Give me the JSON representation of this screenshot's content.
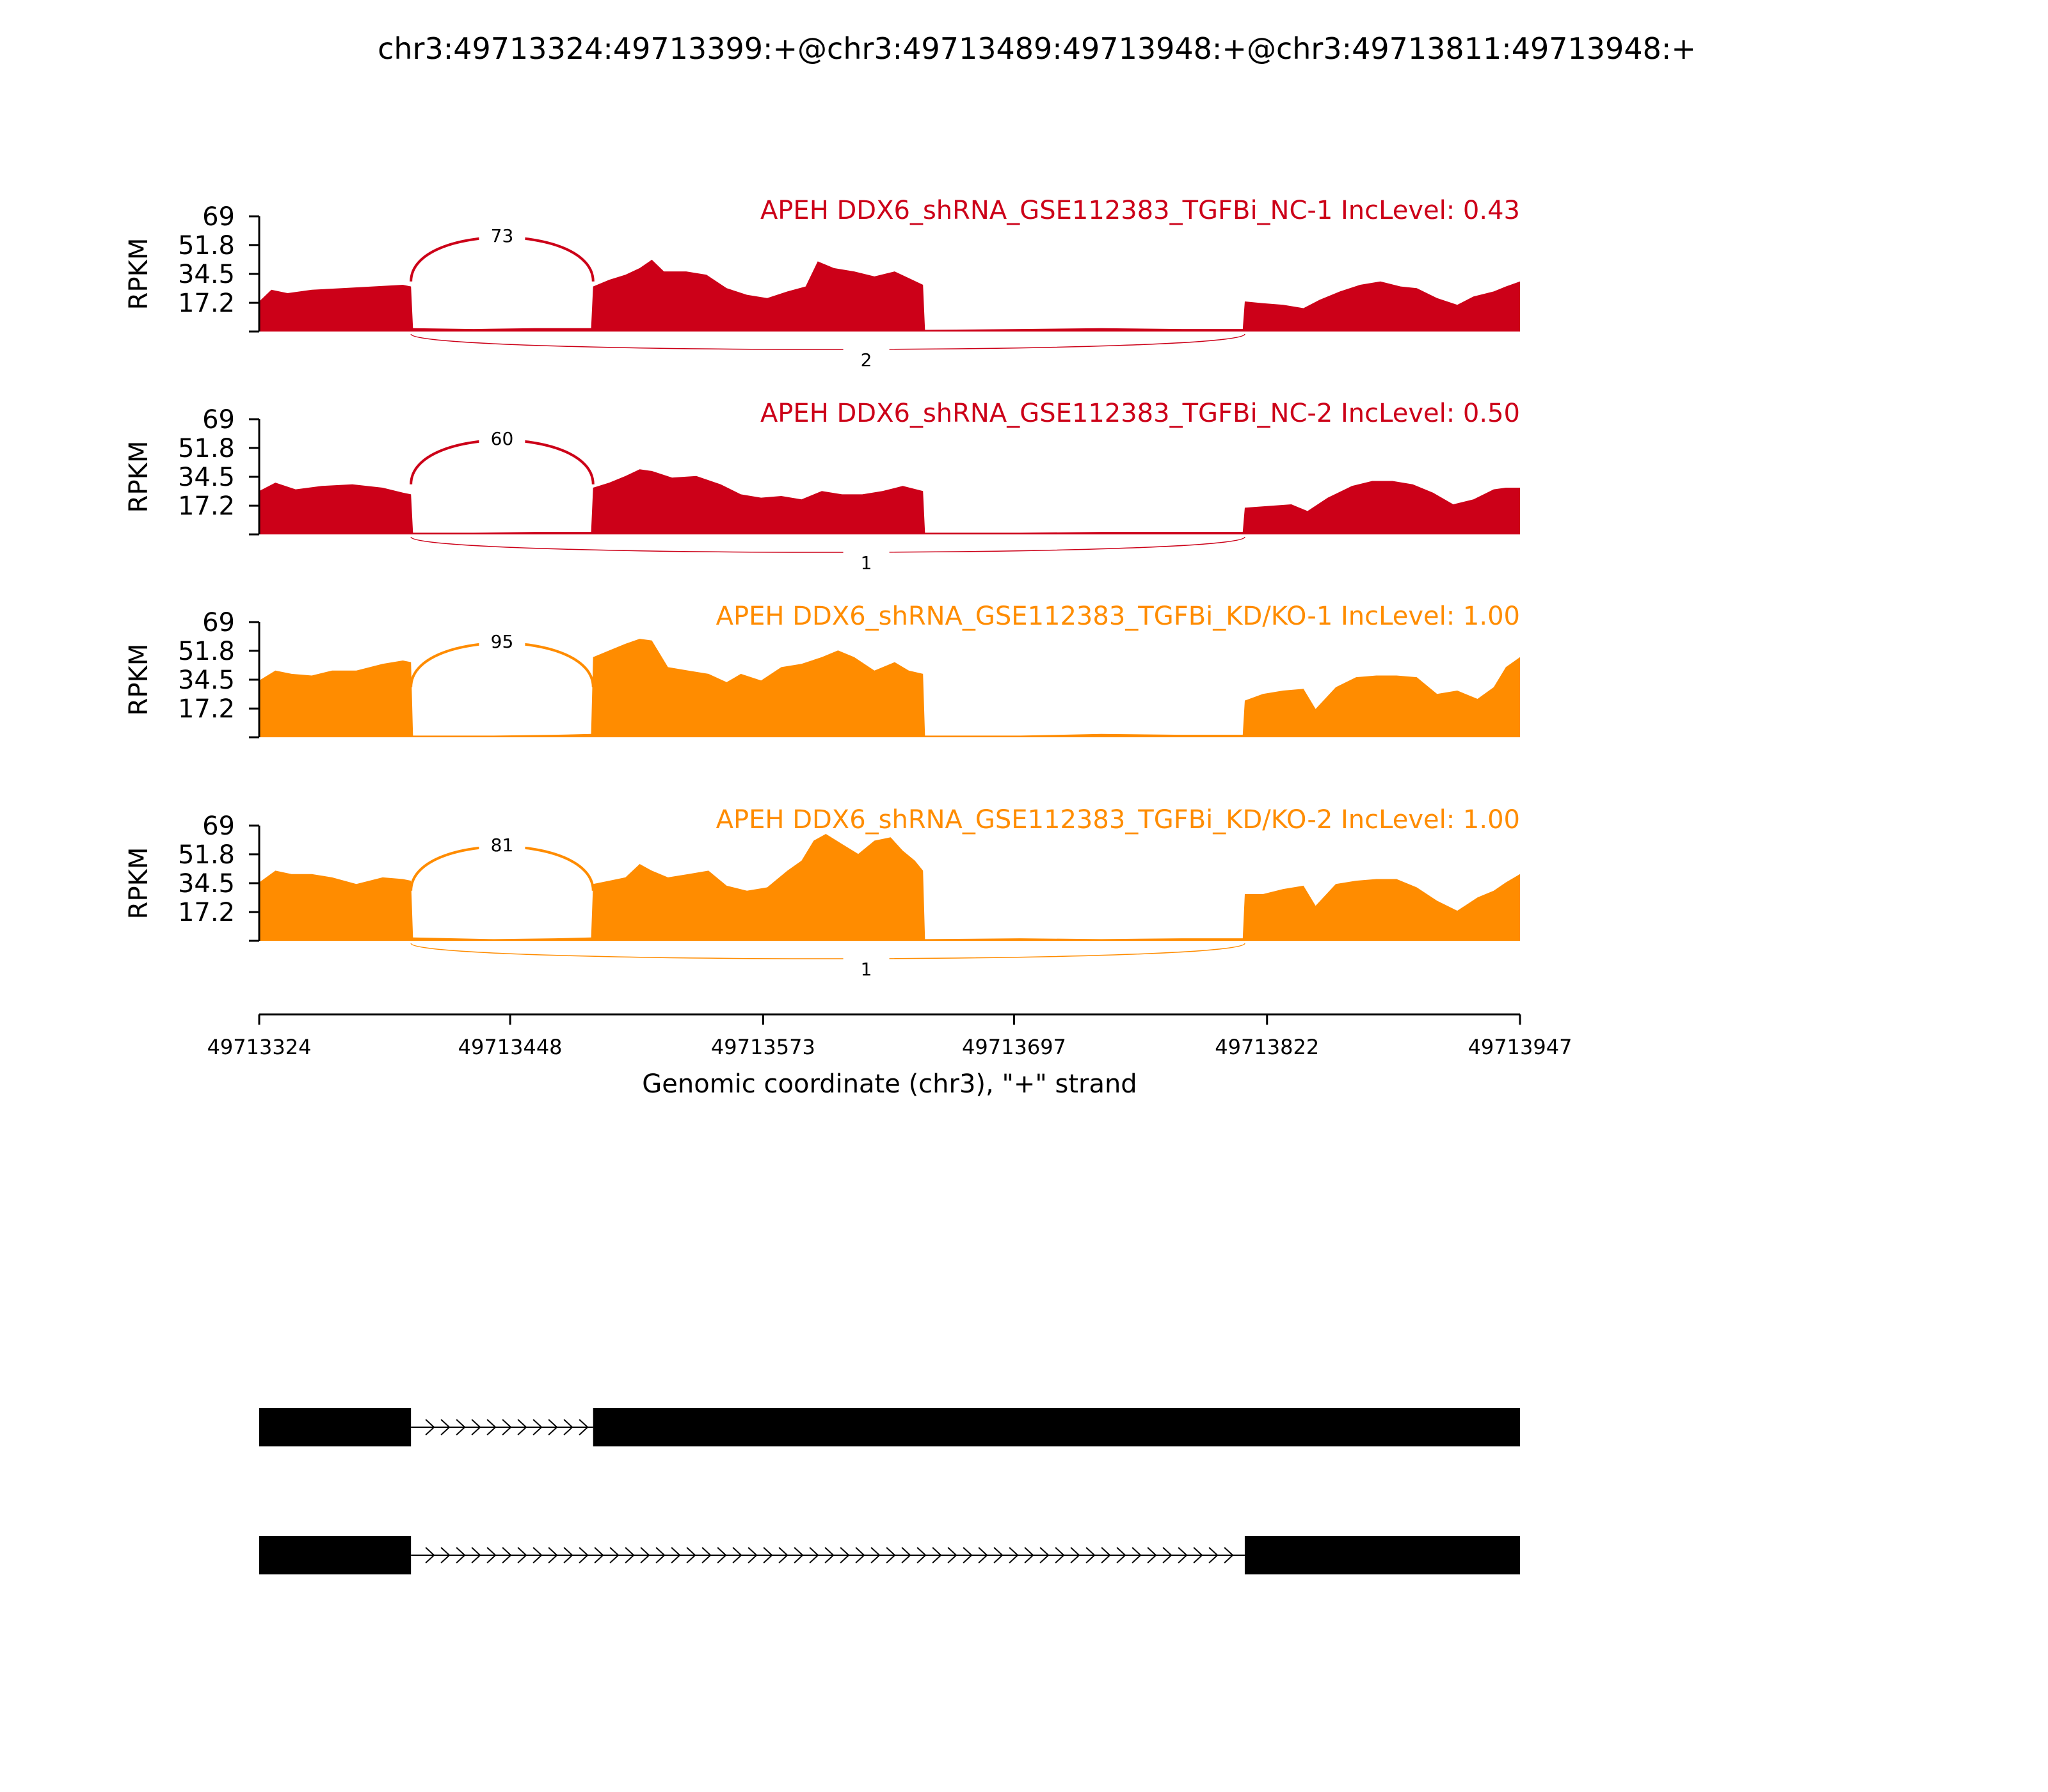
{
  "title": "chr3:49713324:49713399:+@chr3:49713489:49713948:+@chr3:49713811:49713948:+",
  "chart_data": {
    "type": "area",
    "title": "chr3:49713324:49713399:+@chr3:49713489:49713948:+@chr3:49713811:49713948:+",
    "xlabel": "Genomic coordinate (chr3), \"+\" strand",
    "ylabel": "RPKM",
    "xlim": [
      49713324,
      49713947
    ],
    "ylim": [
      0,
      69
    ],
    "x_ticks": [
      "49713324",
      "49713448",
      "49713573",
      "49713697",
      "49713822",
      "49713947"
    ],
    "y_ticks": [
      "17.2",
      "34.5",
      "51.8",
      "69"
    ],
    "exon_regions": [
      [
        49713324,
        49713399
      ],
      [
        49713489,
        49713652
      ],
      [
        49713811,
        49713947
      ]
    ],
    "tracks": [
      {
        "name": "APEH DDX6_shRNA_GSE112383_TGFBi_NC-1",
        "label": "APEH DDX6_shRNA_GSE112383_TGFBi_NC-1 IncLevel: 0.43",
        "inc_level": 0.43,
        "color": "#cc0018",
        "coverage": [
          [
            49713324,
            18
          ],
          [
            49713330,
            25
          ],
          [
            49713338,
            23
          ],
          [
            49713350,
            25
          ],
          [
            49713365,
            26
          ],
          [
            49713380,
            27
          ],
          [
            49713395,
            28
          ],
          [
            49713399,
            27
          ],
          [
            49713400,
            2
          ],
          [
            49713430,
            1.5
          ],
          [
            49713460,
            2
          ],
          [
            49713488,
            2
          ],
          [
            49713489,
            27
          ],
          [
            49713497,
            31
          ],
          [
            49713505,
            34
          ],
          [
            49713512,
            38
          ],
          [
            49713518,
            43
          ],
          [
            49713524,
            36
          ],
          [
            49713535,
            36
          ],
          [
            49713545,
            34
          ],
          [
            49713555,
            26
          ],
          [
            49713565,
            22
          ],
          [
            49713575,
            20
          ],
          [
            49713585,
            24
          ],
          [
            49713594,
            27
          ],
          [
            49713600,
            42
          ],
          [
            49713608,
            38
          ],
          [
            49713618,
            36
          ],
          [
            49713628,
            33
          ],
          [
            49713638,
            36
          ],
          [
            49713645,
            32
          ],
          [
            49713652,
            28
          ],
          [
            49713653,
            1
          ],
          [
            49713700,
            1.5
          ],
          [
            49713740,
            2
          ],
          [
            49713780,
            1.5
          ],
          [
            49713810,
            1.5
          ],
          [
            49713811,
            18
          ],
          [
            49713820,
            17
          ],
          [
            49713830,
            16
          ],
          [
            49713840,
            14
          ],
          [
            49713848,
            19
          ],
          [
            49713858,
            24
          ],
          [
            49713868,
            28
          ],
          [
            49713878,
            30
          ],
          [
            49713888,
            27
          ],
          [
            49713896,
            26
          ],
          [
            49713906,
            20
          ],
          [
            49713916,
            16
          ],
          [
            49713924,
            21
          ],
          [
            49713934,
            24
          ],
          [
            49713940,
            27
          ],
          [
            49713947,
            30
          ]
        ],
        "junctions": [
          {
            "from": 49713399,
            "to": 49713489,
            "count": 73,
            "side": "top"
          },
          {
            "from": 49713399,
            "to": 49713811,
            "count": 2,
            "side": "bottom"
          }
        ]
      },
      {
        "name": "APEH DDX6_shRNA_GSE112383_TGFBi_NC-2",
        "label": "APEH DDX6_shRNA_GSE112383_TGFBi_NC-2 IncLevel: 0.50",
        "inc_level": 0.5,
        "color": "#cc0018",
        "coverage": [
          [
            49713324,
            26
          ],
          [
            49713332,
            31
          ],
          [
            49713342,
            27
          ],
          [
            49713355,
            29
          ],
          [
            49713370,
            30
          ],
          [
            49713385,
            28
          ],
          [
            49713395,
            25
          ],
          [
            49713399,
            24
          ],
          [
            49713400,
            1
          ],
          [
            49713430,
            1
          ],
          [
            49713460,
            1.5
          ],
          [
            49713488,
            1.5
          ],
          [
            49713489,
            28
          ],
          [
            49713497,
            31
          ],
          [
            49713505,
            35
          ],
          [
            49713512,
            39
          ],
          [
            49713518,
            38
          ],
          [
            49713528,
            34
          ],
          [
            49713540,
            35
          ],
          [
            49713552,
            30
          ],
          [
            49713562,
            24
          ],
          [
            49713572,
            22
          ],
          [
            49713582,
            23
          ],
          [
            49713592,
            21
          ],
          [
            49713602,
            26
          ],
          [
            49713612,
            24
          ],
          [
            49713622,
            24
          ],
          [
            49713632,
            26
          ],
          [
            49713642,
            29
          ],
          [
            49713652,
            26
          ],
          [
            49713653,
            1
          ],
          [
            49713700,
            1
          ],
          [
            49713740,
            1.5
          ],
          [
            49713780,
            1.5
          ],
          [
            49713810,
            1.5
          ],
          [
            49713811,
            16
          ],
          [
            49713822,
            17
          ],
          [
            49713834,
            18
          ],
          [
            49713842,
            14
          ],
          [
            49713852,
            22
          ],
          [
            49713864,
            29
          ],
          [
            49713874,
            32
          ],
          [
            49713884,
            32
          ],
          [
            49713894,
            30
          ],
          [
            49713904,
            25
          ],
          [
            49713914,
            18
          ],
          [
            49713924,
            21
          ],
          [
            49713934,
            27
          ],
          [
            49713940,
            28
          ],
          [
            49713947,
            28
          ]
        ],
        "junctions": [
          {
            "from": 49713399,
            "to": 49713489,
            "count": 60,
            "side": "top"
          },
          {
            "from": 49713399,
            "to": 49713811,
            "count": 1,
            "side": "bottom"
          }
        ]
      },
      {
        "name": "APEH DDX6_shRNA_GSE112383_TGFBi_KD/KO-1",
        "label": "APEH DDX6_shRNA_GSE112383_TGFBi_KD/KO-1 IncLevel: 1.00",
        "inc_level": 1.0,
        "color": "#ff8c00",
        "coverage": [
          [
            49713324,
            34
          ],
          [
            49713332,
            40
          ],
          [
            49713340,
            38
          ],
          [
            49713350,
            37
          ],
          [
            49713360,
            40
          ],
          [
            49713372,
            40
          ],
          [
            49713385,
            44
          ],
          [
            49713395,
            46
          ],
          [
            49713399,
            45
          ],
          [
            49713400,
            1
          ],
          [
            49713440,
            1
          ],
          [
            49713470,
            1.5
          ],
          [
            49713488,
            2
          ],
          [
            49713489,
            48
          ],
          [
            49713497,
            52
          ],
          [
            49713505,
            56
          ],
          [
            49713512,
            59
          ],
          [
            49713518,
            58
          ],
          [
            49713526,
            42
          ],
          [
            49713536,
            40
          ],
          [
            49713546,
            38
          ],
          [
            49713555,
            33
          ],
          [
            49713562,
            38
          ],
          [
            49713572,
            34
          ],
          [
            49713582,
            42
          ],
          [
            49713592,
            44
          ],
          [
            49713602,
            48
          ],
          [
            49713610,
            52
          ],
          [
            49713618,
            48
          ],
          [
            49713628,
            40
          ],
          [
            49713638,
            45
          ],
          [
            49713645,
            40
          ],
          [
            49713652,
            38
          ],
          [
            49713653,
            1
          ],
          [
            49713700,
            1
          ],
          [
            49713740,
            2
          ],
          [
            49713780,
            1.5
          ],
          [
            49713810,
            1.5
          ],
          [
            49713811,
            22
          ],
          [
            49713820,
            26
          ],
          [
            49713830,
            28
          ],
          [
            49713840,
            29
          ],
          [
            49713846,
            17
          ],
          [
            49713856,
            30
          ],
          [
            49713866,
            36
          ],
          [
            49713876,
            37
          ],
          [
            49713886,
            37
          ],
          [
            49713896,
            36
          ],
          [
            49713906,
            26
          ],
          [
            49713916,
            28
          ],
          [
            49713926,
            23
          ],
          [
            49713934,
            30
          ],
          [
            49713940,
            42
          ],
          [
            49713947,
            48
          ]
        ],
        "junctions": [
          {
            "from": 49713399,
            "to": 49713489,
            "count": 95,
            "side": "top"
          }
        ]
      },
      {
        "name": "APEH DDX6_shRNA_GSE112383_TGFBi_KD/KO-2",
        "label": "APEH DDX6_shRNA_GSE112383_TGFBi_KD/KO-2 IncLevel: 1.00",
        "inc_level": 1.0,
        "color": "#ff8c00",
        "coverage": [
          [
            49713324,
            35
          ],
          [
            49713332,
            42
          ],
          [
            49713340,
            40
          ],
          [
            49713350,
            40
          ],
          [
            49713360,
            38
          ],
          [
            49713372,
            34
          ],
          [
            49713385,
            38
          ],
          [
            49713395,
            37
          ],
          [
            49713399,
            36
          ],
          [
            49713400,
            2
          ],
          [
            49713440,
            1
          ],
          [
            49713470,
            1.5
          ],
          [
            49713488,
            2
          ],
          [
            49713489,
            34
          ],
          [
            49713497,
            36
          ],
          [
            49713505,
            38
          ],
          [
            49713512,
            46
          ],
          [
            49713518,
            42
          ],
          [
            49713526,
            38
          ],
          [
            49713536,
            40
          ],
          [
            49713546,
            42
          ],
          [
            49713555,
            33
          ],
          [
            49713565,
            30
          ],
          [
            49713575,
            32
          ],
          [
            49713585,
            42
          ],
          [
            49713592,
            48
          ],
          [
            49713598,
            60
          ],
          [
            49713604,
            64
          ],
          [
            49713612,
            58
          ],
          [
            49713620,
            52
          ],
          [
            49713628,
            60
          ],
          [
            49713636,
            62
          ],
          [
            49713642,
            54
          ],
          [
            49713648,
            48
          ],
          [
            49713652,
            42
          ],
          [
            49713653,
            1
          ],
          [
            49713700,
            1.5
          ],
          [
            49713740,
            1
          ],
          [
            49713780,
            1.5
          ],
          [
            49713810,
            1.5
          ],
          [
            49713811,
            28
          ],
          [
            49713820,
            28
          ],
          [
            49713830,
            31
          ],
          [
            49713840,
            33
          ],
          [
            49713846,
            21
          ],
          [
            49713856,
            34
          ],
          [
            49713866,
            36
          ],
          [
            49713876,
            37
          ],
          [
            49713886,
            37
          ],
          [
            49713896,
            32
          ],
          [
            49713906,
            24
          ],
          [
            49713916,
            18
          ],
          [
            49713926,
            26
          ],
          [
            49713934,
            30
          ],
          [
            49713940,
            35
          ],
          [
            49713947,
            40
          ]
        ],
        "junctions": [
          {
            "from": 49713399,
            "to": 49713489,
            "count": 81,
            "side": "top"
          },
          {
            "from": 49713399,
            "to": 49713811,
            "count": 1,
            "side": "bottom"
          }
        ]
      }
    ],
    "isoforms": [
      {
        "exons": [
          [
            49713324,
            49713399
          ],
          [
            49713489,
            49713947
          ]
        ]
      },
      {
        "exons": [
          [
            49713324,
            49713399
          ],
          [
            49713811,
            49713947
          ]
        ]
      }
    ]
  }
}
